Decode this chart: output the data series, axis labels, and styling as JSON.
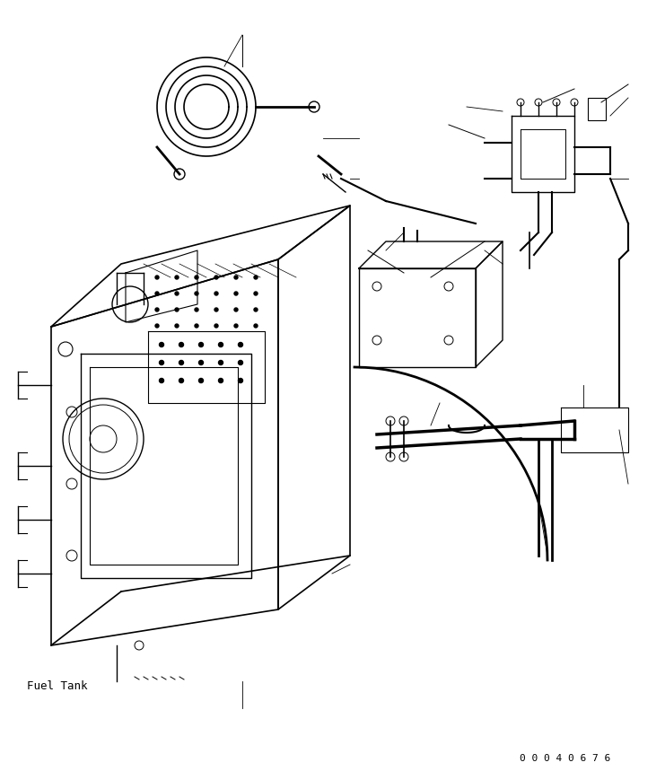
{
  "title": "",
  "background_color": "#ffffff",
  "line_color": "#000000",
  "text_color": "#000000",
  "label_fuel_tank": "Fuel Tank",
  "part_number": "0 0 0 4 0 6 7 6",
  "figsize": [
    7.41,
    8.7
  ],
  "dpi": 100
}
